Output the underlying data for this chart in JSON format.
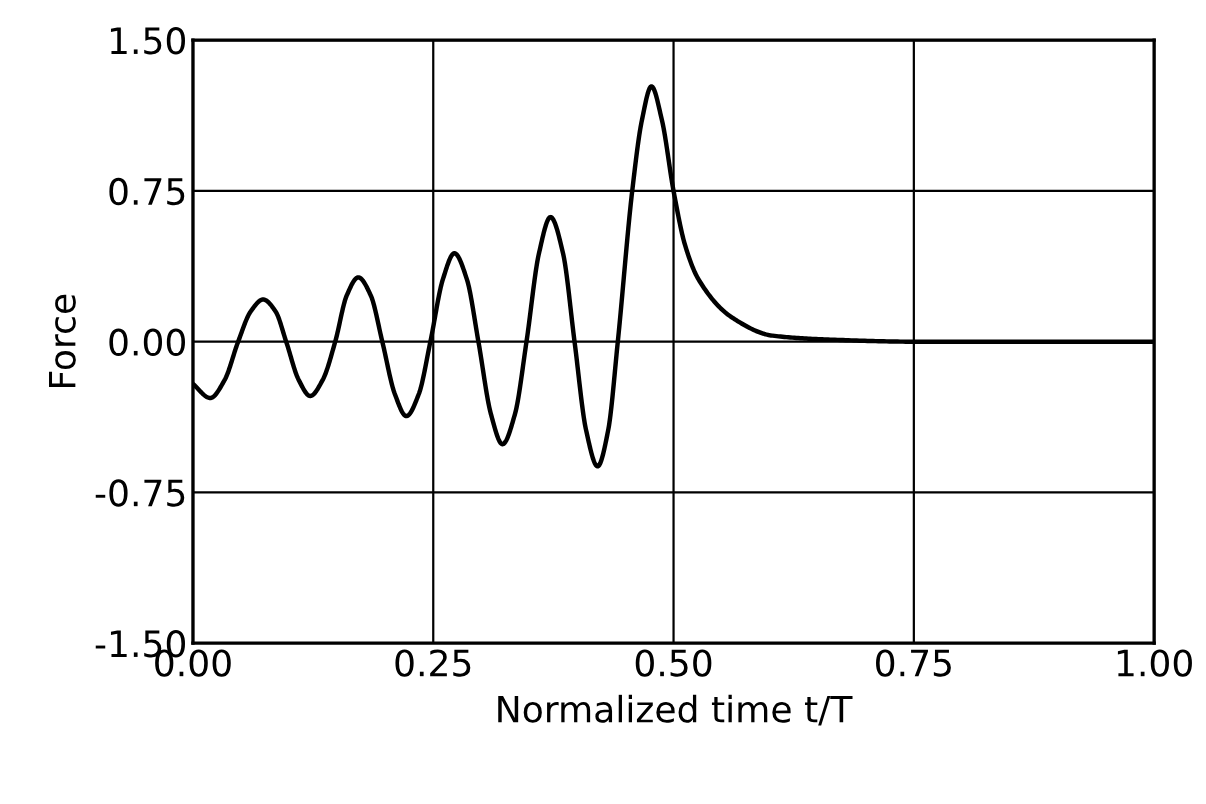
{
  "chart_data": {
    "type": "line",
    "xlabel": "Normalized time t/T",
    "ylabel": "Force",
    "xlim": [
      0,
      1
    ],
    "ylim": [
      -1.5,
      1.5
    ],
    "xticks": [
      {
        "value": 0,
        "label": "0.00"
      },
      {
        "value": 0.25,
        "label": "0.25"
      },
      {
        "value": 0.5,
        "label": "0.50"
      },
      {
        "value": 0.75,
        "label": "0.75"
      },
      {
        "value": 1,
        "label": "1.00"
      }
    ],
    "yticks": [
      {
        "value": -1.5,
        "label": "-1.50"
      },
      {
        "value": -0.75,
        "label": "-0.75"
      },
      {
        "value": 0,
        "label": "0.00"
      },
      {
        "value": 0.75,
        "label": "0.75"
      },
      {
        "value": 1.5,
        "label": "1.50"
      }
    ],
    "grid": true,
    "marker": "none",
    "line_style": "solid",
    "series": [
      {
        "color": "#000000",
        "x": [
          0,
          0.018,
          0.033,
          0.047,
          0.06,
          0.073,
          0.086,
          0.097,
          0.11,
          0.122,
          0.135,
          0.148,
          0.16,
          0.172,
          0.185,
          0.197,
          0.21,
          0.222,
          0.235,
          0.247,
          0.26,
          0.272,
          0.285,
          0.297,
          0.31,
          0.322,
          0.335,
          0.347,
          0.36,
          0.372,
          0.385,
          0.397,
          0.409,
          0.421,
          0.432,
          0.442,
          0.457,
          0.467,
          0.477,
          0.488,
          0.5,
          0.512,
          0.526,
          0.561,
          0.603,
          0.665,
          0.75,
          1.0
        ],
        "values": [
          -0.21,
          -0.28,
          -0.19,
          0,
          0.15,
          0.21,
          0.15,
          0,
          -0.19,
          -0.27,
          -0.19,
          0,
          0.23,
          0.32,
          0.23,
          0,
          -0.26,
          -0.37,
          -0.26,
          0,
          0.31,
          0.44,
          0.31,
          0,
          -0.36,
          -0.51,
          -0.36,
          0,
          0.44,
          0.62,
          0.44,
          0,
          -0.44,
          -0.62,
          -0.44,
          0,
          0.75,
          1.1,
          1.27,
          1.1,
          0.75,
          0.48,
          0.31,
          0.12,
          0.03,
          0.01,
          0,
          0
        ]
      }
    ]
  }
}
